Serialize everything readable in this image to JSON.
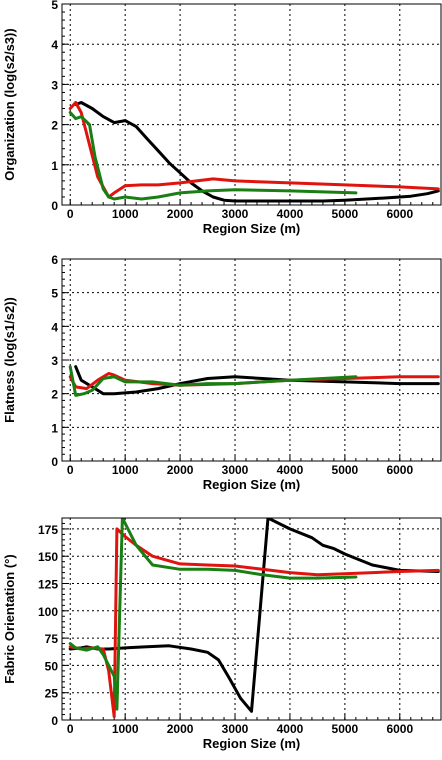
{
  "colors": {
    "background": "#ffffff",
    "axis": "#000000",
    "grid": "#000000",
    "series": {
      "black": "#000000",
      "red": "#e0140f",
      "green": "#1a7f12"
    }
  },
  "chart_data": [
    {
      "type": "line",
      "ylabel": "Organization (log(s2/s3))",
      "xlabel": "Region Size (m)",
      "xlim": [
        -150,
        6750
      ],
      "ylim": [
        0,
        5
      ],
      "xticks": [
        0,
        1000,
        2000,
        3000,
        4000,
        5000,
        6000
      ],
      "xticklabels": [
        "0",
        "1000",
        "2000",
        "3000",
        "4000",
        "5000",
        "6000"
      ],
      "yticks": [
        0,
        1,
        2,
        3,
        4,
        5
      ],
      "yticklabels": [
        "0",
        "1",
        "2",
        "3",
        "4",
        "5"
      ],
      "grid": true,
      "series": [
        {
          "color": "black",
          "x": [
            100,
            200,
            400,
            600,
            800,
            1000,
            1200,
            1400,
            1600,
            1800,
            2000,
            2200,
            2400,
            2600,
            2800,
            3000,
            3400,
            4000,
            4600,
            5000,
            5400,
            5800,
            6200,
            6500,
            6700
          ],
          "y": [
            2.5,
            2.55,
            2.4,
            2.2,
            2.05,
            2.1,
            1.95,
            1.65,
            1.35,
            1.05,
            0.8,
            0.55,
            0.35,
            0.2,
            0.12,
            0.1,
            0.1,
            0.1,
            0.1,
            0.12,
            0.15,
            0.18,
            0.22,
            0.28,
            0.35
          ]
        },
        {
          "color": "red",
          "x": [
            0,
            100,
            200,
            350,
            500,
            700,
            800,
            1000,
            1300,
            1600,
            2000,
            2600,
            3000,
            4000,
            5000,
            6000,
            6700
          ],
          "y": [
            2.4,
            2.55,
            2.3,
            1.5,
            0.7,
            0.2,
            0.3,
            0.48,
            0.5,
            0.5,
            0.55,
            0.65,
            0.6,
            0.55,
            0.5,
            0.45,
            0.4
          ]
        },
        {
          "color": "green",
          "x": [
            0,
            100,
            200,
            350,
            450,
            600,
            700,
            800,
            1000,
            1300,
            1600,
            2000,
            2500,
            3000,
            4000,
            5200
          ],
          "y": [
            2.3,
            2.15,
            2.2,
            2.0,
            1.2,
            0.4,
            0.2,
            0.15,
            0.2,
            0.15,
            0.2,
            0.3,
            0.35,
            0.38,
            0.35,
            0.3
          ]
        }
      ]
    },
    {
      "type": "line",
      "ylabel": "Flatness (log(s1/s2))",
      "xlabel": "Region Size (m)",
      "xlim": [
        -150,
        6750
      ],
      "ylim": [
        0,
        6
      ],
      "xticks": [
        0,
        1000,
        2000,
        3000,
        4000,
        5000,
        6000
      ],
      "xticklabels": [
        "0",
        "1000",
        "2000",
        "3000",
        "4000",
        "5000",
        "6000"
      ],
      "yticks": [
        0,
        1,
        2,
        3,
        4,
        5,
        6
      ],
      "yticklabels": [
        "0",
        "1",
        "2",
        "3",
        "4",
        "5",
        "6"
      ],
      "grid": true,
      "series": [
        {
          "color": "black",
          "x": [
            100,
            200,
            400,
            600,
            800,
            1200,
            1600,
            2000,
            2500,
            3000,
            3500,
            4000,
            5000,
            6000,
            6700
          ],
          "y": [
            2.8,
            2.4,
            2.2,
            2.0,
            2.0,
            2.05,
            2.15,
            2.3,
            2.45,
            2.5,
            2.45,
            2.4,
            2.35,
            2.3,
            2.3
          ]
        },
        {
          "color": "red",
          "x": [
            0,
            100,
            300,
            500,
            700,
            800,
            1000,
            1500,
            2000,
            3000,
            4000,
            5000,
            6000,
            6700
          ],
          "y": [
            2.5,
            2.2,
            2.15,
            2.4,
            2.6,
            2.55,
            2.4,
            2.3,
            2.25,
            2.3,
            2.4,
            2.45,
            2.5,
            2.5
          ]
        },
        {
          "color": "green",
          "x": [
            0,
            100,
            250,
            400,
            600,
            800,
            1000,
            1500,
            2000,
            2500,
            3000,
            4000,
            5200
          ],
          "y": [
            2.8,
            1.95,
            2.0,
            2.1,
            2.45,
            2.5,
            2.35,
            2.35,
            2.25,
            2.3,
            2.3,
            2.4,
            2.5
          ]
        }
      ]
    },
    {
      "type": "line",
      "ylabel": "Fabric Orientation (°)",
      "xlabel": "Region Size (m)",
      "xlim": [
        -150,
        6750
      ],
      "ylim": [
        0,
        185
      ],
      "xticks": [
        0,
        1000,
        2000,
        3000,
        4000,
        5000,
        6000
      ],
      "xticklabels": [
        "0",
        "1000",
        "2000",
        "3000",
        "4000",
        "5000",
        "6000"
      ],
      "yticks": [
        0,
        25,
        50,
        75,
        100,
        125,
        150,
        175
      ],
      "yticklabels": [
        "0",
        "25",
        "50",
        "75",
        "100",
        "125",
        "150",
        "175"
      ],
      "grid": true,
      "series": [
        {
          "color": "black",
          "x": [
            0,
            200,
            300,
            500,
            700,
            1000,
            1400,
            1800,
            2200,
            2500,
            2700,
            2900,
            3100,
            3300,
            3600,
            4000,
            4400,
            4600,
            4800,
            5000,
            5500,
            6000,
            6700
          ],
          "y": [
            65,
            66,
            67,
            65,
            65,
            66,
            67,
            68,
            65,
            62,
            55,
            38,
            20,
            8,
            185,
            175,
            167,
            160,
            157,
            152,
            142,
            137,
            136
          ]
        },
        {
          "color": "red",
          "x": [
            0,
            200,
            400,
            600,
            700,
            800,
            850,
            1000,
            1200,
            1500,
            2000,
            2500,
            3000,
            3500,
            4000,
            4500,
            5000,
            6000,
            6700
          ],
          "y": [
            67,
            65,
            66,
            65,
            45,
            3,
            175,
            168,
            160,
            150,
            143,
            142,
            141,
            138,
            135,
            133,
            134,
            136,
            137
          ]
        },
        {
          "color": "green",
          "x": [
            0,
            100,
            300,
            500,
            600,
            800,
            850,
            950,
            1000,
            1200,
            1500,
            2000,
            2500,
            3000,
            3500,
            4000,
            4500,
            5200
          ],
          "y": [
            70,
            66,
            64,
            67,
            60,
            40,
            10,
            185,
            180,
            160,
            142,
            138,
            138,
            137,
            133,
            130,
            130,
            131
          ]
        }
      ]
    }
  ]
}
